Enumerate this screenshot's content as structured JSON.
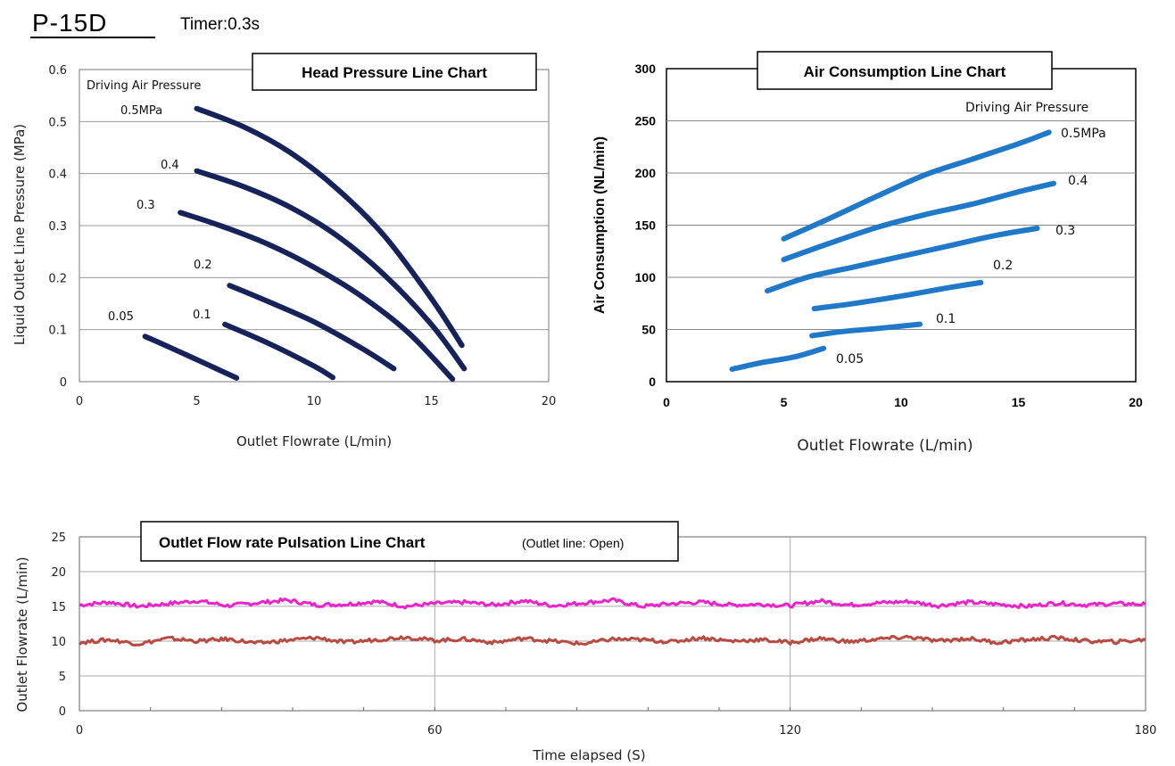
{
  "header": {
    "model": "P-15D",
    "timer": "Timer:0.3s"
  },
  "chart_data": [
    {
      "type": "line",
      "title": "Head Pressure Line Chart",
      "xlabel": "Outlet Flowrate (L/min)",
      "ylabel": "Liquid Outlet Line Pressure (MPa)",
      "xlim": [
        0,
        20
      ],
      "ylim": [
        0,
        0.6
      ],
      "xticks": [
        "0",
        "5",
        "10",
        "15",
        "20"
      ],
      "yticks": [
        "0",
        "0.1",
        "0.2",
        "0.3",
        "0.4",
        "0.5",
        "0.6"
      ],
      "legend_title": "Driving Air Pressure",
      "grid": "horizontal",
      "color": "#15235a",
      "series": [
        {
          "name": "0.5 MPa",
          "x": [
            5,
            7,
            9,
            11,
            13,
            15,
            16.3
          ],
          "y": [
            0.525,
            0.49,
            0.44,
            0.37,
            0.28,
            0.16,
            0.07
          ]
        },
        {
          "name": "0.4",
          "x": [
            5,
            7,
            9,
            11,
            13,
            15,
            16.4
          ],
          "y": [
            0.405,
            0.375,
            0.335,
            0.28,
            0.205,
            0.11,
            0.025
          ]
        },
        {
          "name": "0.3",
          "x": [
            4.3,
            6,
            8,
            10,
            12,
            14,
            15.9
          ],
          "y": [
            0.325,
            0.3,
            0.265,
            0.22,
            0.165,
            0.095,
            0.005
          ]
        },
        {
          "name": "0.2",
          "x": [
            6.4,
            8,
            10,
            12,
            13.4
          ],
          "y": [
            0.185,
            0.155,
            0.115,
            0.065,
            0.025
          ]
        },
        {
          "name": "0.1",
          "x": [
            6.2,
            8,
            10,
            10.8
          ],
          "y": [
            0.11,
            0.075,
            0.03,
            0.008
          ]
        },
        {
          "name": "0.05",
          "x": [
            2.8,
            4,
            5.5,
            6.7
          ],
          "y": [
            0.087,
            0.063,
            0.032,
            0.007
          ]
        }
      ],
      "labels": [
        "0.5MPa",
        "0.4",
        "0.3",
        "0.2",
        "0.1",
        "0.05"
      ]
    },
    {
      "type": "line",
      "title": "Air Consumption Line Chart",
      "xlabel": "Outlet Flowrate (L/min)",
      "ylabel": "Air Consumption (NL/min)",
      "xlim": [
        0,
        20
      ],
      "ylim": [
        0,
        300
      ],
      "xticks": [
        "0",
        "5",
        "10",
        "15",
        "20"
      ],
      "yticks": [
        "0",
        "50",
        "100",
        "150",
        "200",
        "250",
        "300"
      ],
      "legend_title": "Driving Air Pressure",
      "grid": "horizontal",
      "color": "#1f78c8",
      "series": [
        {
          "name": "0.5 MPa",
          "x": [
            5,
            7,
            9,
            11,
            13,
            15,
            16.3
          ],
          "y": [
            137,
            157,
            178,
            198,
            213,
            228,
            239
          ]
        },
        {
          "name": "0.4",
          "x": [
            5,
            7,
            9,
            11,
            13,
            15,
            16.5
          ],
          "y": [
            117,
            133,
            148,
            160,
            170,
            182,
            190
          ]
        },
        {
          "name": "0.3",
          "x": [
            4.3,
            6,
            8,
            10,
            12,
            14,
            15.8
          ],
          "y": [
            87,
            100,
            110,
            120,
            130,
            140,
            147
          ]
        },
        {
          "name": "0.2",
          "x": [
            6.3,
            8,
            10,
            12,
            13.4
          ],
          "y": [
            70,
            75,
            82,
            90,
            95
          ]
        },
        {
          "name": "0.1",
          "x": [
            6.2,
            7.5,
            9,
            10.8
          ],
          "y": [
            44,
            48,
            51,
            55
          ]
        },
        {
          "name": "0.05",
          "x": [
            2.8,
            4,
            5.5,
            6.7
          ],
          "y": [
            12,
            18,
            24,
            32
          ]
        }
      ],
      "labels": [
        "0.5MPa",
        "0.4",
        "0.3",
        "0.2",
        "0.1",
        "0.05"
      ]
    },
    {
      "type": "line",
      "title": "Outlet Flow rate Pulsation Line Chart",
      "subtitle": "(Outlet line: Open)",
      "xlabel": "Time elapsed (S)",
      "ylabel": "Outlet Flowrate (L/min)",
      "xlim": [
        0,
        180
      ],
      "ylim": [
        0,
        25
      ],
      "xticks": [
        "0",
        "60",
        "120",
        "180"
      ],
      "yticks": [
        "0",
        "5",
        "10",
        "15",
        "20",
        "25"
      ],
      "grid": "both",
      "series": [
        {
          "color": "#ee22cc",
          "mean": 15.3,
          "x": [
            0,
            5,
            10,
            15,
            20,
            25,
            30,
            35,
            40,
            45,
            50,
            55,
            60,
            65,
            70,
            75,
            80,
            85,
            90,
            95,
            100,
            105,
            110,
            115,
            120,
            125,
            130,
            135,
            140,
            145,
            150,
            155,
            160,
            165,
            170,
            175,
            180
          ],
          "y": [
            15.2,
            15.6,
            15.0,
            15.4,
            15.8,
            15.1,
            15.5,
            15.9,
            15.2,
            15.3,
            15.7,
            15.0,
            15.4,
            15.6,
            15.2,
            15.8,
            15.1,
            15.5,
            15.9,
            15.0,
            15.4,
            15.6,
            15.2,
            15.3,
            15.1,
            15.8,
            15.2,
            15.5,
            15.7,
            15.1,
            15.6,
            15.3,
            15.0,
            15.5,
            15.2,
            15.4,
            15.3
          ]
        },
        {
          "color": "#b84a42",
          "mean": 10.0,
          "x": [
            0,
            5,
            10,
            15,
            20,
            25,
            30,
            35,
            40,
            45,
            50,
            55,
            60,
            65,
            70,
            75,
            80,
            85,
            90,
            95,
            100,
            105,
            110,
            115,
            120,
            125,
            130,
            135,
            140,
            145,
            150,
            155,
            160,
            165,
            170,
            175,
            180
          ],
          "y": [
            9.8,
            10.2,
            9.6,
            10.4,
            10.0,
            10.3,
            9.7,
            10.1,
            10.5,
            9.8,
            10.2,
            10.6,
            10.1,
            10.3,
            9.8,
            10.4,
            10.0,
            9.6,
            10.3,
            10.2,
            9.9,
            10.5,
            10.0,
            10.2,
            9.8,
            10.4,
            9.9,
            10.3,
            10.6,
            10.0,
            10.4,
            9.8,
            10.2,
            10.5,
            10.0,
            9.9,
            10.2
          ]
        }
      ]
    }
  ]
}
